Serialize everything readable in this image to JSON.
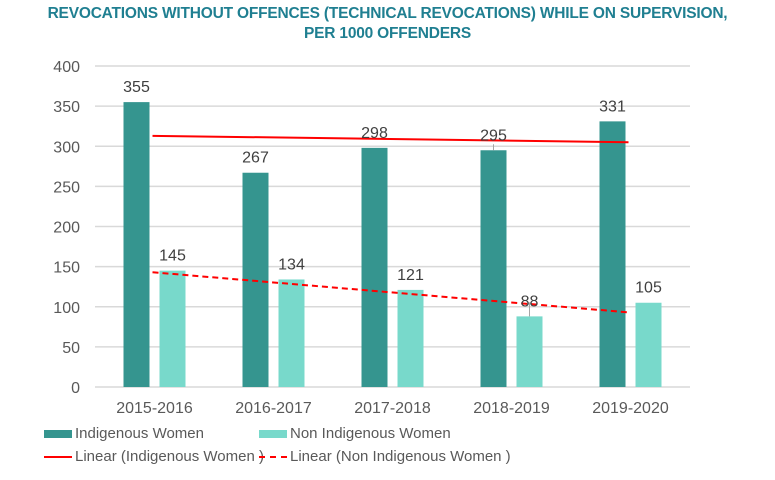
{
  "chart_data": {
    "type": "bar",
    "title_line1": "REVOCATIONS WITHOUT OFFENCES (TECHNICAL REVOCATIONS) WHILE ON SUPERVISION,",
    "title_line2": "PER 1000 OFFENDERS",
    "categories": [
      "2015-2016",
      "2016-2017",
      "2017-2018",
      "2018-2019",
      "2019-2020"
    ],
    "series": [
      {
        "name": "Indigenous Women",
        "values": [
          355,
          267,
          298,
          295,
          331
        ],
        "color": "#35958f"
      },
      {
        "name": "Non Indigenous Women",
        "values": [
          145,
          134,
          121,
          88,
          105
        ],
        "color": "#78d9cb"
      }
    ],
    "trendlines": [
      {
        "name": "Linear (Indigenous Women )",
        "of": "Indigenous Women",
        "start": 313,
        "end": 305,
        "style": "solid",
        "color": "#ff0000"
      },
      {
        "name": "Linear (Non Indigenous Women )",
        "of": "Non Indigenous Women",
        "start": 143,
        "end": 93,
        "style": "dashed",
        "color": "#ff0000"
      }
    ],
    "yticks": [
      0,
      50,
      100,
      150,
      200,
      250,
      300,
      350,
      400
    ],
    "ylim": [
      0,
      400
    ],
    "xlabel": "",
    "ylabel": "",
    "grid": true,
    "legend_position": "bottom"
  }
}
